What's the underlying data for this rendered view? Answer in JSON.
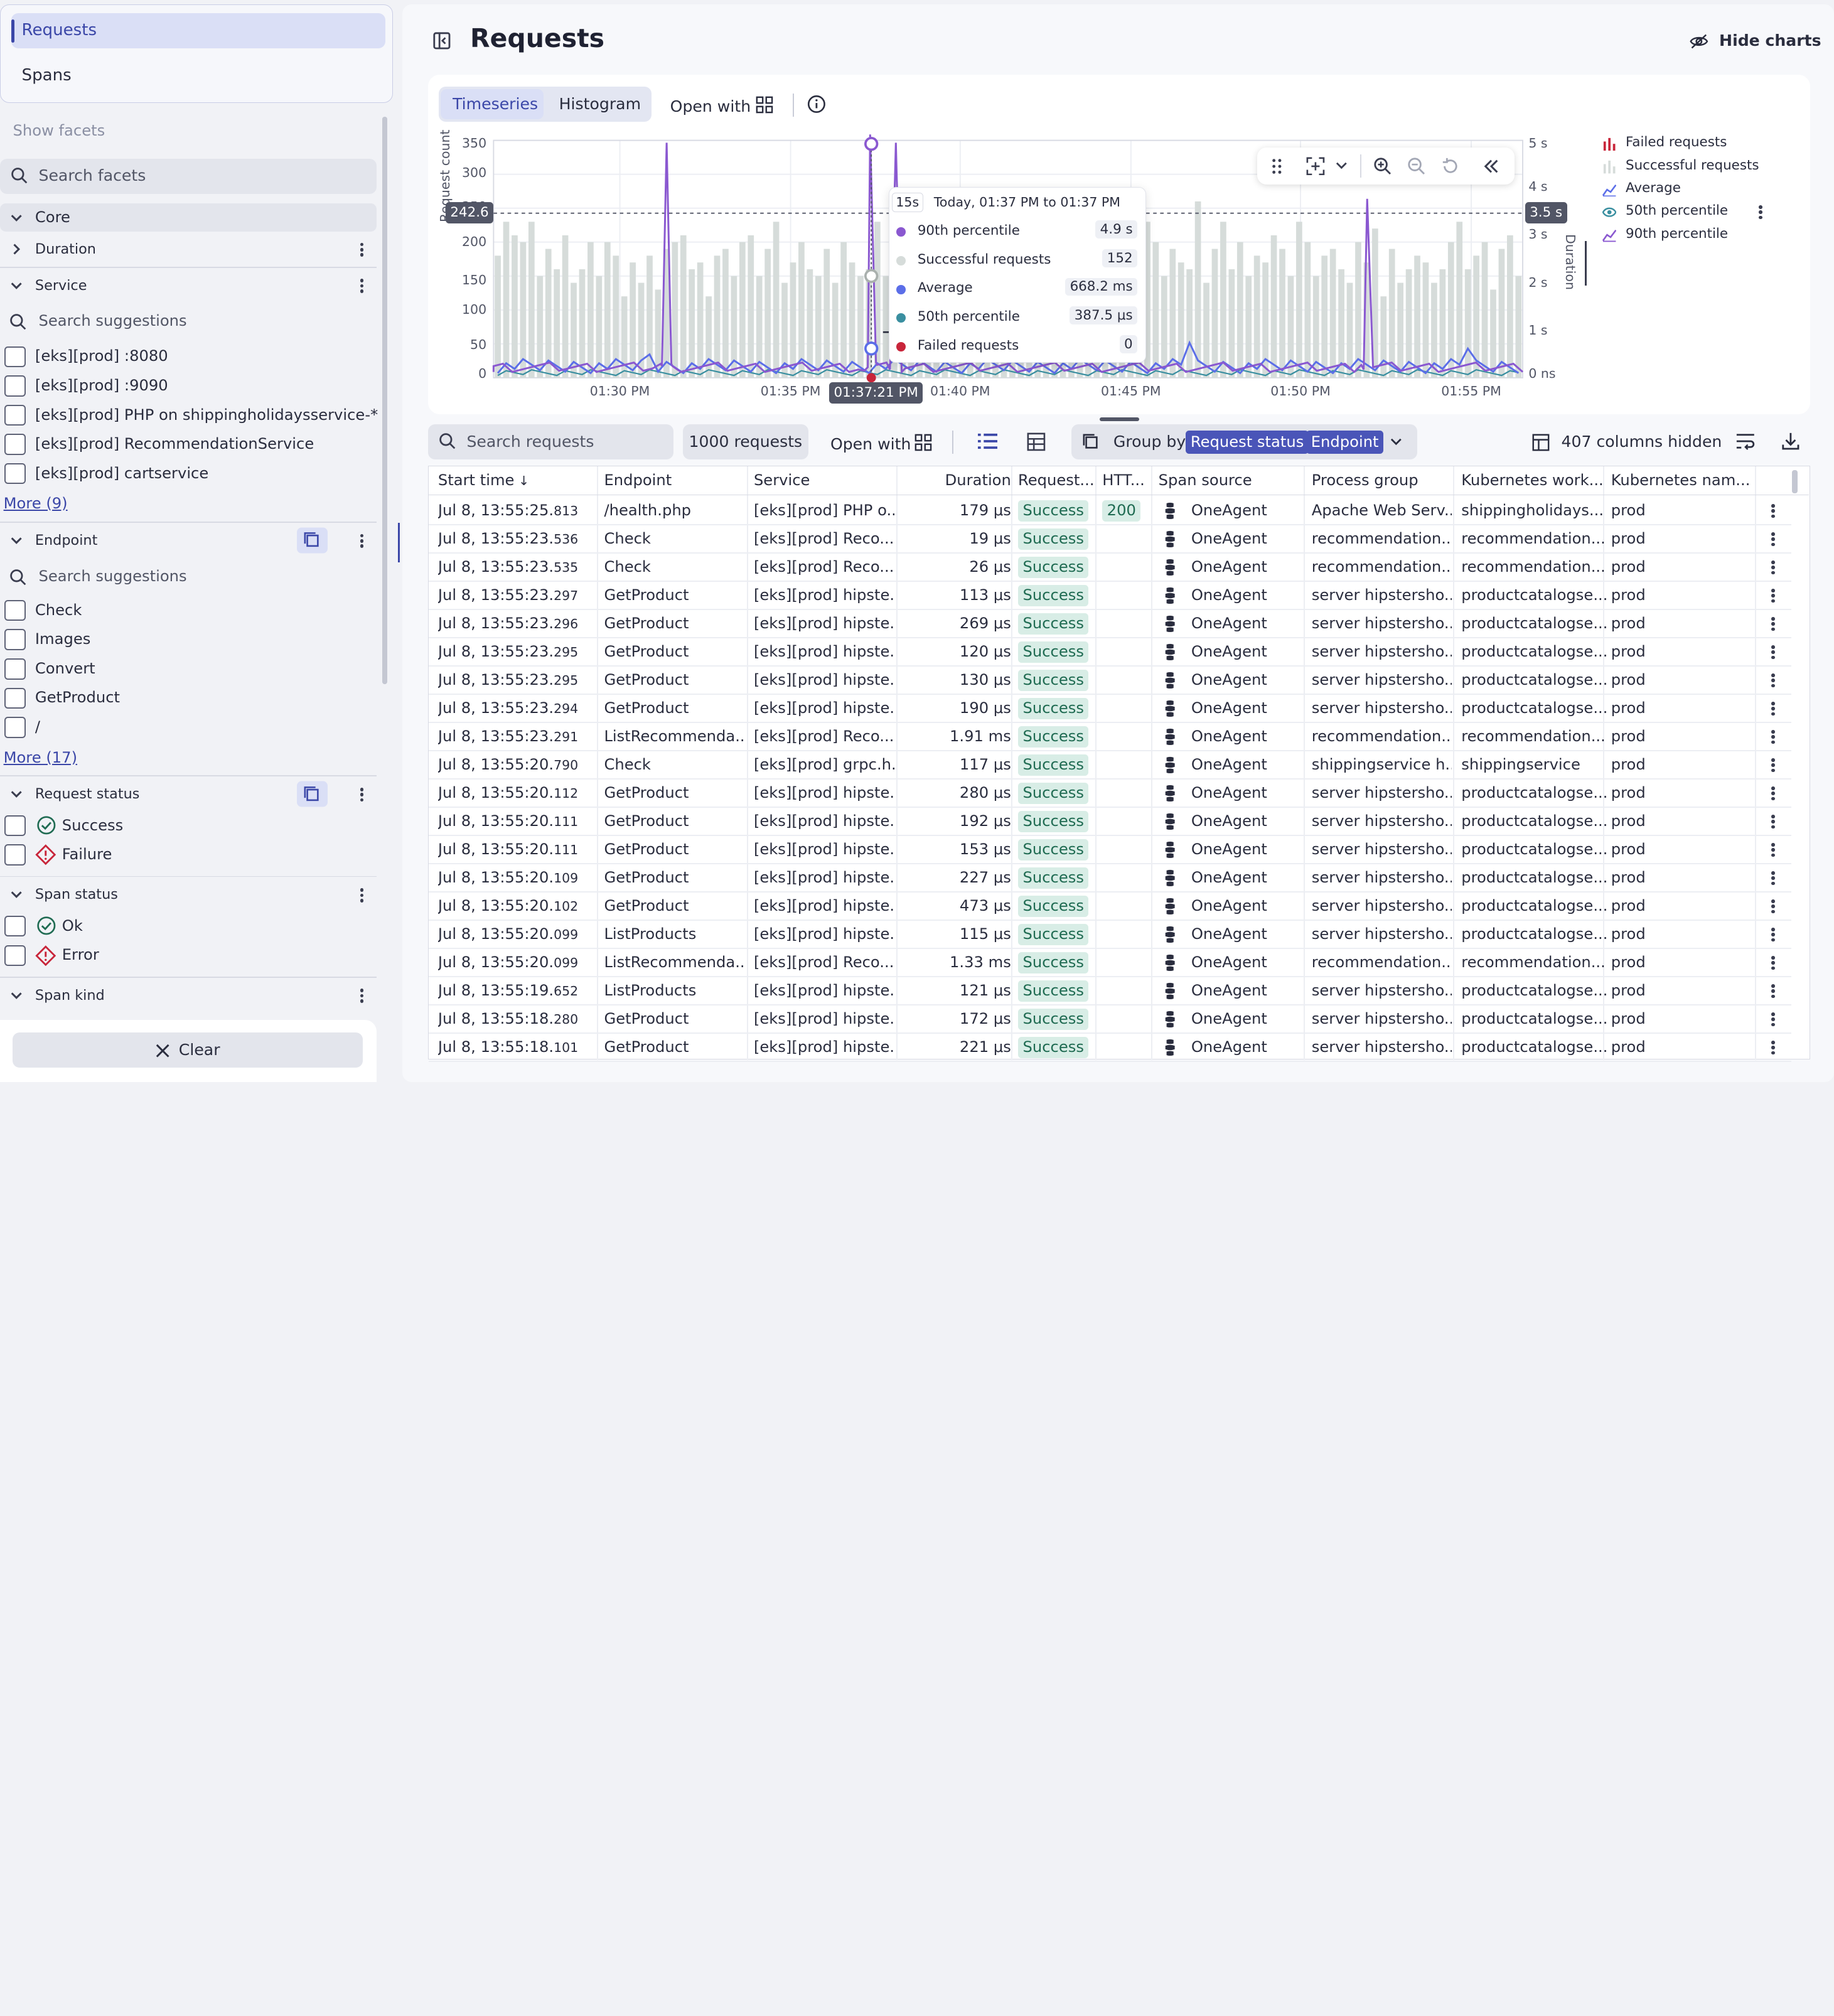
{
  "nav": {
    "requests_tab": "Requests",
    "spans_tab": "Spans"
  },
  "facets": {
    "show_facets": "Show facets",
    "search_placeholder": "Search facets",
    "core": "Core",
    "duration": "Duration",
    "service": {
      "label": "Service",
      "search": "Search suggestions",
      "items": [
        "[eks][prod] :8080",
        "[eks][prod] :9090",
        "[eks][prod] PHP on shippingholidaysservice-*",
        "[eks][prod] RecommendationService",
        "[eks][prod] cartservice"
      ],
      "more": "More (9)"
    },
    "endpoint": {
      "label": "Endpoint",
      "search": "Search suggestions",
      "items": [
        "Check",
        "Images",
        "Convert",
        "GetProduct",
        "/"
      ],
      "more": "More (17)"
    },
    "request_status": {
      "label": "Request status",
      "items": [
        "Success",
        "Failure"
      ]
    },
    "span_status": {
      "label": "Span status",
      "items": [
        "Ok",
        "Error"
      ]
    },
    "span_kind": "Span kind",
    "clear": "Clear"
  },
  "header": {
    "title": "Requests",
    "hide_charts": "Hide charts"
  },
  "chart_toolbar": {
    "timeseries": "Timeseries",
    "histogram": "Histogram",
    "open_with": "Open with"
  },
  "chart_data": {
    "type": "bar",
    "ylabel": "Request count",
    "y2label": "Duration",
    "ylim": [
      0,
      350
    ],
    "yticks": [
      "350",
      "300",
      "250",
      "200",
      "150",
      "100",
      "50",
      "0"
    ],
    "y2ticks": [
      "5 s",
      "4 s",
      "3 s",
      "2 s",
      "1 s",
      "0 ns"
    ],
    "xticks": [
      "01:30 PM",
      "01:35 PM",
      "01:40 PM",
      "01:45 PM",
      "01:50 PM",
      "01:55 PM"
    ],
    "threshold_left": "242.6",
    "threshold_right": "3.5 s",
    "cursor_time": "01:37:21 PM",
    "series": [
      {
        "name": "Failed requests",
        "color": "#c8253a"
      },
      {
        "name": "Successful requests",
        "color": "#d6dcda"
      },
      {
        "name": "Average",
        "color": "#5b6ee8"
      },
      {
        "name": "50th percentile",
        "color": "#3a8fa0"
      },
      {
        "name": "90th percentile",
        "color": "#8a58d0"
      }
    ],
    "bars": [
      180,
      230,
      210,
      200,
      230,
      150,
      190,
      160,
      210,
      140,
      160,
      200,
      150,
      200,
      180,
      120,
      170,
      140,
      180,
      130,
      190,
      200,
      210,
      160,
      170,
      120,
      180,
      190,
      150,
      200,
      210,
      150,
      190,
      230,
      140,
      170,
      200,
      160,
      150,
      190,
      140,
      200,
      170,
      150,
      160,
      230,
      150,
      170,
      190,
      210,
      140,
      190,
      150,
      200,
      120,
      230,
      200,
      150,
      200,
      180,
      140,
      190,
      210,
      230,
      200,
      120,
      170,
      160,
      190,
      200,
      150,
      180,
      260,
      170,
      150,
      190,
      160,
      230,
      200,
      150,
      190,
      170,
      160,
      260,
      140,
      190,
      230,
      160,
      200,
      150,
      180,
      170,
      210,
      190,
      150,
      230,
      200,
      150,
      180,
      190,
      160,
      140,
      200,
      170,
      220,
      120,
      190,
      140,
      160,
      180,
      170,
      140,
      160,
      200,
      230,
      160,
      180,
      200,
      130,
      190,
      210,
      150
    ],
    "tooltip": {
      "badge": "15s",
      "range": "Today, 01:37 PM to 01:37 PM",
      "rows": [
        {
          "label": "90th percentile",
          "value": "4.9 s",
          "color": "#8a58d0"
        },
        {
          "label": "Successful requests",
          "value": "152",
          "color": "#d6dcda"
        },
        {
          "label": "Average",
          "value": "668.2 ms",
          "color": "#5b6ee8"
        },
        {
          "label": "50th percentile",
          "value": "387.5 μs",
          "color": "#3a8fa0"
        },
        {
          "label": "Failed requests",
          "value": "0",
          "color": "#c8253a"
        }
      ]
    }
  },
  "table_toolbar": {
    "search_placeholder": "Search requests",
    "count": "1000 requests",
    "open_with": "Open with",
    "group_by": "Group by:",
    "group_chip1": "Request status",
    "group_chip2": "Endpoint",
    "hidden_cols": "407 columns hidden"
  },
  "table": {
    "columns": [
      "Start time",
      "Endpoint",
      "Service",
      "Duration",
      "Request...",
      "HTT...",
      "Span source",
      "Process group",
      "Kubernetes work...",
      "Kubernetes nam..."
    ],
    "rows": [
      [
        "Jul 8, 13:55:25.",
        "813",
        "/health.php",
        "[eks][prod] PHP o...",
        "179 μs",
        "Success",
        "200",
        "OneAgent",
        "Apache Web Serv...",
        "shippingholidays...",
        "prod"
      ],
      [
        "Jul 8, 13:55:23.",
        "536",
        "Check",
        "[eks][prod] Reco...",
        "19 μs",
        "Success",
        "",
        "OneAgent",
        "recommendation...",
        "recommendation...",
        "prod"
      ],
      [
        "Jul 8, 13:55:23.",
        "535",
        "Check",
        "[eks][prod] Reco...",
        "26 μs",
        "Success",
        "",
        "OneAgent",
        "recommendation...",
        "recommendation...",
        "prod"
      ],
      [
        "Jul 8, 13:55:23.",
        "297",
        "GetProduct",
        "[eks][prod] hipste...",
        "113 μs",
        "Success",
        "",
        "OneAgent",
        "server hipstersho...",
        "productcatalogse...",
        "prod"
      ],
      [
        "Jul 8, 13:55:23.",
        "296",
        "GetProduct",
        "[eks][prod] hipste...",
        "269 μs",
        "Success",
        "",
        "OneAgent",
        "server hipstersho...",
        "productcatalogse...",
        "prod"
      ],
      [
        "Jul 8, 13:55:23.",
        "295",
        "GetProduct",
        "[eks][prod] hipste...",
        "120 μs",
        "Success",
        "",
        "OneAgent",
        "server hipstersho...",
        "productcatalogse...",
        "prod"
      ],
      [
        "Jul 8, 13:55:23.",
        "295",
        "GetProduct",
        "[eks][prod] hipste...",
        "130 μs",
        "Success",
        "",
        "OneAgent",
        "server hipstersho...",
        "productcatalogse...",
        "prod"
      ],
      [
        "Jul 8, 13:55:23.",
        "294",
        "GetProduct",
        "[eks][prod] hipste...",
        "190 μs",
        "Success",
        "",
        "OneAgent",
        "server hipstersho...",
        "productcatalogse...",
        "prod"
      ],
      [
        "Jul 8, 13:55:23.",
        "291",
        "ListRecommenda...",
        "[eks][prod] Reco...",
        "1.91 ms",
        "Success",
        "",
        "OneAgent",
        "recommendation...",
        "recommendation...",
        "prod"
      ],
      [
        "Jul 8, 13:55:20.",
        "790",
        "Check",
        "[eks][prod] grpc.h...",
        "117 μs",
        "Success",
        "",
        "OneAgent",
        "shippingservice h...",
        "shippingservice",
        "prod"
      ],
      [
        "Jul 8, 13:55:20.",
        "112",
        "GetProduct",
        "[eks][prod] hipste...",
        "280 μs",
        "Success",
        "",
        "OneAgent",
        "server hipstersho...",
        "productcatalogse...",
        "prod"
      ],
      [
        "Jul 8, 13:55:20.",
        "111",
        "GetProduct",
        "[eks][prod] hipste...",
        "192 μs",
        "Success",
        "",
        "OneAgent",
        "server hipstersho...",
        "productcatalogse...",
        "prod"
      ],
      [
        "Jul 8, 13:55:20.",
        "111",
        "GetProduct",
        "[eks][prod] hipste...",
        "153 μs",
        "Success",
        "",
        "OneAgent",
        "server hipstersho...",
        "productcatalogse...",
        "prod"
      ],
      [
        "Jul 8, 13:55:20.",
        "109",
        "GetProduct",
        "[eks][prod] hipste...",
        "227 μs",
        "Success",
        "",
        "OneAgent",
        "server hipstersho...",
        "productcatalogse...",
        "prod"
      ],
      [
        "Jul 8, 13:55:20.",
        "102",
        "GetProduct",
        "[eks][prod] hipste...",
        "473 μs",
        "Success",
        "",
        "OneAgent",
        "server hipstersho...",
        "productcatalogse...",
        "prod"
      ],
      [
        "Jul 8, 13:55:20.",
        "099",
        "ListProducts",
        "[eks][prod] hipste...",
        "115 μs",
        "Success",
        "",
        "OneAgent",
        "server hipstersho...",
        "productcatalogse...",
        "prod"
      ],
      [
        "Jul 8, 13:55:20.",
        "099",
        "ListRecommenda...",
        "[eks][prod] Reco...",
        "1.33 ms",
        "Success",
        "",
        "OneAgent",
        "recommendation...",
        "recommendation...",
        "prod"
      ],
      [
        "Jul 8, 13:55:19.",
        "652",
        "ListProducts",
        "[eks][prod] hipste...",
        "121 μs",
        "Success",
        "",
        "OneAgent",
        "server hipstersho...",
        "productcatalogse...",
        "prod"
      ],
      [
        "Jul 8, 13:55:18.",
        "280",
        "GetProduct",
        "[eks][prod] hipste...",
        "172 μs",
        "Success",
        "",
        "OneAgent",
        "server hipstersho...",
        "productcatalogse...",
        "prod"
      ],
      [
        "Jul 8, 13:55:18.",
        "101",
        "GetProduct",
        "[eks][prod] hipste...",
        "221 μs",
        "Success",
        "",
        "OneAgent",
        "server hipstersho...",
        "productcatalogse...",
        "prod"
      ]
    ]
  }
}
